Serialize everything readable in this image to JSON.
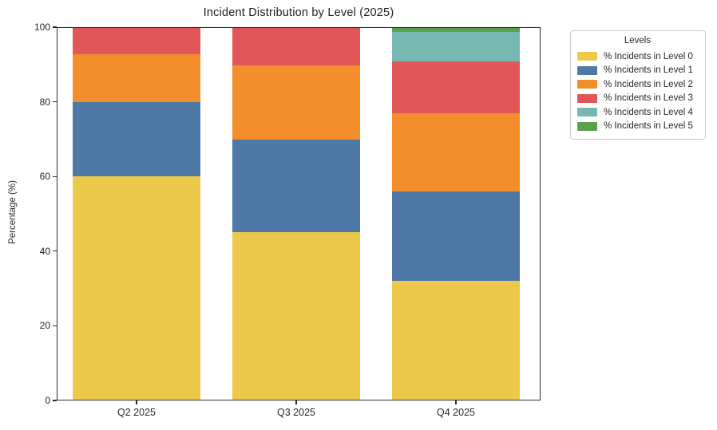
{
  "chart_data": {
    "type": "bar",
    "stacked": true,
    "title": "Incident Distribution by Level (2025)",
    "xlabel": "",
    "ylabel": "Percentage (%)",
    "categories": [
      "Q2 2025",
      "Q3 2025",
      "Q4 2025"
    ],
    "series": [
      {
        "name": "% Incidents in Level 0",
        "color": "#EDC94B",
        "values": [
          60,
          45,
          32
        ]
      },
      {
        "name": "% Incidents in Level 1",
        "color": "#4E79A7",
        "values": [
          20,
          25,
          24
        ]
      },
      {
        "name": "% Incidents in Level 2",
        "color": "#F28E2B",
        "values": [
          13,
          20,
          21
        ]
      },
      {
        "name": "% Incidents in Level 3",
        "color": "#E15759",
        "values": [
          7,
          10,
          14
        ]
      },
      {
        "name": "% Incidents in Level 4",
        "color": "#76B7B2",
        "values": [
          0,
          0,
          8
        ]
      },
      {
        "name": "% Incidents in Level 5",
        "color": "#59A14F",
        "values": [
          0,
          0,
          1
        ]
      }
    ],
    "legend_title": "Levels",
    "legend_position": "outside upper right",
    "ylim": [
      0,
      100
    ],
    "yticks": [
      0,
      20,
      40,
      60,
      80,
      100
    ],
    "grid": false,
    "spine_color": "#2b2b2b",
    "text_color": "#262626"
  }
}
